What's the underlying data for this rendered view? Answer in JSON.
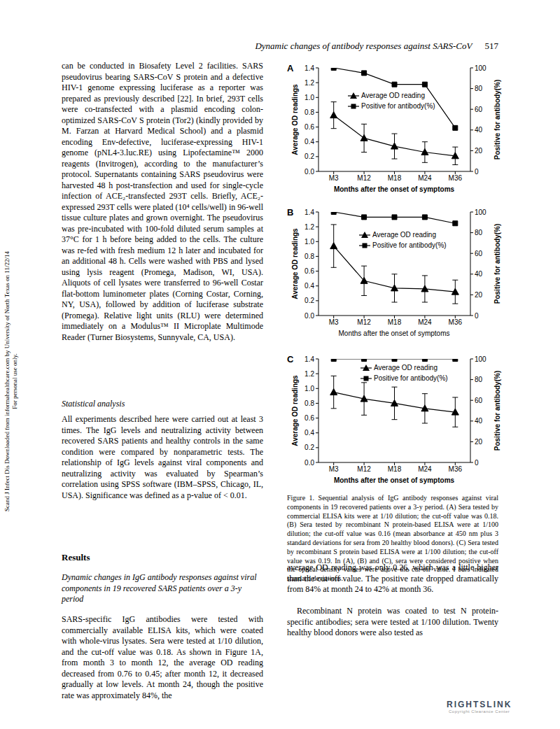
{
  "header": {
    "running_title": "Dynamic changes of antibody responses against SARS-CoV",
    "page_number": "517"
  },
  "side_note": [
    "Scand J Infect Dis Downloaded from informahealthcare.com by University of North Texas on 11/22/14",
    "For personal use only."
  ],
  "left_column": {
    "paragraph_1": "can be conducted in Biosafety Level 2 facilities. SARS pseudovirus bearing SARS-CoV S protein and a defective HIV-1 genome expressing luciferase as a reporter was prepared as previously described [22]. In brief, 293T cells were co-transfected with a plasmid encoding colon-optimized SARS-CoV S protein (Tor2) (kindly provided by M. Farzan at Harvard Medical School) and a plasmid encoding Env-defective, luciferase-expressing HIV-1 genome (pNL4-3.luc.RE) using Lipofectamine™ 2000 reagents (Invitrogen), according to the manufacturer’s protocol. Supernatants containing SARS pseudovirus were harvested 48 h post-transfection and used for single-cycle infection of ACE₂-transfected 293T cells. Briefly, ACE₂-expressed 293T cells were plated (10⁴ cells/well) in 96-well tissue culture plates and grown overnight. The pseudovirus was pre-incubated with 100-fold diluted serum samples at 37°C for 1 h before being added to the cells. The culture was re-fed with fresh medium 12 h later and incubated for an additional 48 h. Cells were washed with PBS and lysed using lysis reagent (Promega, Madison, WI, USA). Aliquots of cell lysates were transferred to 96-well Costar flat-bottom luminometer plates (Corning Costar, Corning, NY, USA), followed by addition of luciferase substrate (Promega). Relative light units (RLU) were determined immediately on a Modulus™ II Microplate Multimode Reader (Turner Biosystems, Sunnyvale, CA, USA).",
    "heading_1": "Statistical analysis",
    "paragraph_2": "All experiments described here were carried out at least 3 times. The IgG levels and neutralizing activity between recovered SARS patients and healthy controls in the same condition were compared by nonparametric tests. The relationship of IgG levels against viral components and neutralizing activity was evaluated by Spearman’s correlation using SPSS software (IBM–SPSS, Chicago, IL, USA). Significance was defined as a p-value of < 0.01.",
    "heading_2": "Results",
    "subheading": "Dynamic changes in IgG antibody responses against viral components in 19 recovered SARS patients over a 3-y period",
    "paragraph_3": "SARS-specific IgG antibodies were tested with commercially available ELISA kits, which were coated with whole-virus lysates. Sera were tested at 1/10 dilution, and the cut-off value was 0.18. As shown in Figure 1A, from month 3 to month 12, the average OD reading decreased from 0.76 to 0.45; after month 12, it decreased gradually at low levels. At month 24, though the positive rate was approximately 84%, the"
  },
  "chart_data": [
    {
      "type": "line",
      "panel": "A",
      "categories": [
        "M3",
        "M12",
        "M18",
        "M24",
        "M36"
      ],
      "x_label": "Months after the onset of symptoms",
      "y_label": "Average OD readings",
      "y2_label": "Positive for antibody(%)",
      "ylim": [
        0,
        1.4
      ],
      "yticks": [
        {
          "value": 0,
          "label": "0.0"
        },
        0.2,
        0.4,
        0.6,
        0.8,
        {
          "value": 1,
          "label": "1.0"
        },
        1.2,
        1.4
      ],
      "y2lim": [
        0,
        100
      ],
      "y2ticks": [
        0,
        20,
        40,
        60,
        80,
        100
      ],
      "legend": "upper center",
      "series": [
        {
          "name": "Average OD reading",
          "color": "#000000",
          "marker": "triangle",
          "values": [
            0.76,
            0.45,
            0.34,
            0.26,
            0.21
          ],
          "error": [
            0.18,
            0.19,
            0.17,
            0.14,
            0.12
          ]
        },
        {
          "name": "Positive for antibody(%)",
          "color": "#000000",
          "marker": "square",
          "axis": "y2",
          "values": [
            100,
            95,
            84,
            84,
            42
          ]
        }
      ]
    },
    {
      "type": "line",
      "panel": "B",
      "categories": [
        "M3",
        "M12",
        "M18",
        "M24",
        "M36"
      ],
      "x_label": "Months after the onset of symptoms",
      "y_label": "Average OD readings",
      "y2_label": "Positive for antibody(%)",
      "ylim": [
        0,
        1.4
      ],
      "yticks": [
        {
          "value": 0,
          "label": "0.0"
        },
        0.2,
        0.4,
        0.6,
        0.8,
        {
          "value": 1,
          "label": "1.0"
        },
        1.2,
        1.4
      ],
      "y2lim": [
        0,
        100
      ],
      "y2ticks": [
        0,
        20,
        40,
        60,
        80,
        100
      ],
      "legend": "upper center",
      "series": [
        {
          "name": "Average OD reading",
          "color": "#000000",
          "marker": "triangle",
          "values": [
            0.94,
            0.47,
            0.37,
            0.36,
            0.32
          ],
          "error": [
            0.29,
            0.2,
            0.19,
            0.18,
            0.16
          ]
        },
        {
          "name": "Positive for antibody(%)",
          "color": "#000000",
          "marker": "square",
          "axis": "y2",
          "values": [
            100,
            95,
            95,
            95,
            89
          ]
        }
      ]
    },
    {
      "type": "line",
      "panel": "C",
      "categories": [
        "M3",
        "M12",
        "M18",
        "M24",
        "M36"
      ],
      "x_label": "Months after the onset of symptoms",
      "y_label": "Average OD readings",
      "y2_label": "Positive for antibody(%)",
      "ylim": [
        0,
        1.4
      ],
      "yticks": [
        {
          "value": 0,
          "label": "0.0"
        },
        0.2,
        0.4,
        0.6,
        0.8,
        {
          "value": 1,
          "label": "1.0"
        },
        1.2,
        1.4
      ],
      "y2lim": [
        0,
        100
      ],
      "y2ticks": [
        0,
        20,
        40,
        60,
        80,
        100
      ],
      "legend": "upper center",
      "series": [
        {
          "name": "Average OD reading",
          "color": "#000000",
          "marker": "triangle",
          "values": [
            0.95,
            0.86,
            0.8,
            0.73,
            0.68
          ],
          "error": [
            0.22,
            0.22,
            0.22,
            0.2,
            0.2
          ]
        },
        {
          "name": "Positive for antibody(%)",
          "color": "#000000",
          "marker": "square",
          "axis": "y2",
          "values": [
            100,
            100,
            100,
            100,
            100
          ]
        }
      ]
    }
  ],
  "figure_caption": "Figure 1. Sequential analysis of IgG antibody responses against viral components in 19 recovered patients over a 3-y period. (A) Sera tested by commercial ELISA kits were at 1/10 dilution; the cut-off value was 0.18. (B) Sera tested by recombinant N protein-based ELISA were at 1/100 dilution; the cut-off value was 0.16 (mean absorbance at 450 nm plus 3 standard deviations for sera from 20 healthy blood donors). (C) Sera tested by recombinant S protein based ELISA were at 1/100 dilution; the cut-off value was 0.19. In (A), (B) and (C), sera were considered positive when the optical density values were above the cut-off value. I bars indicated standard deviations.",
  "right_column": {
    "paragraph_1": "average OD reading was only 0.26, which was a little higher than the cut-off value. The positive rate dropped dramatically from 84% at month 24 to 42% at month 36.",
    "paragraph_2": "Recombinant N protein was coated to test N protein-specific antibodies; sera were tested at 1/100 dilution. Twenty healthy blood donors were also tested as"
  },
  "footer": {
    "logo": "RIGHTSLINK",
    "logo_subtext": "Copyright Clearance Center"
  }
}
